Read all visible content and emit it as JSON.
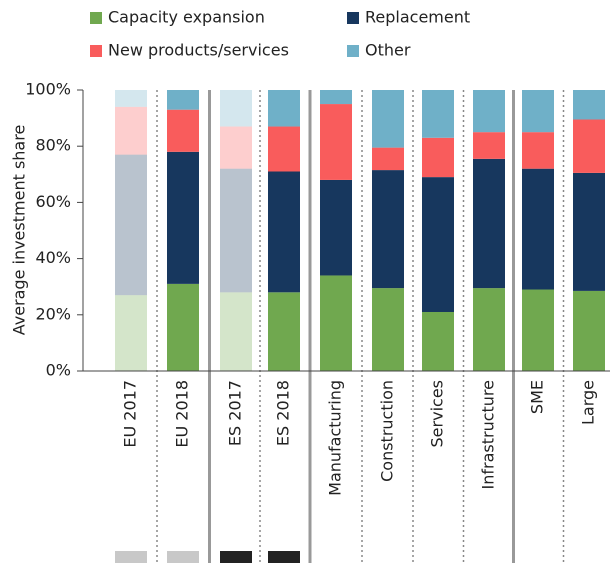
{
  "chart_data": {
    "type": "stacked_bar",
    "y_axis_label": "Average investment share",
    "categories": [
      "EU 2017",
      "EU 2018",
      "ES 2017",
      "ES 2018",
      "Manufacturing",
      "Construction",
      "Services",
      "Infrastructure",
      "SME",
      "Large"
    ],
    "faded": [
      true,
      false,
      true,
      false,
      false,
      false,
      false,
      false,
      false,
      false
    ],
    "series": [
      {
        "name": "Capacity expansion",
        "color": "#70a84f",
        "values": [
          27,
          31,
          28,
          28,
          34,
          29.5,
          21,
          29.5,
          29,
          28.5
        ]
      },
      {
        "name": "Replacement",
        "color": "#17375e",
        "values": [
          50,
          47,
          44,
          43,
          34,
          42,
          48,
          46,
          43,
          42
        ]
      },
      {
        "name": "New products/services",
        "color": "#f95c5c",
        "values": [
          17,
          15,
          15,
          16,
          27,
          8,
          14,
          9.5,
          13,
          19
        ]
      },
      {
        "name": "Other",
        "color": "#6fb0c8",
        "values": [
          6,
          7,
          13,
          13,
          5,
          20.5,
          17,
          15,
          15,
          10.5
        ]
      }
    ],
    "ylim": [
      0,
      100
    ],
    "yticks": [
      {
        "value": 0,
        "label": "0%"
      },
      {
        "value": 20,
        "label": "20%"
      },
      {
        "value": 40,
        "label": "40%"
      },
      {
        "value": 60,
        "label": "60%"
      },
      {
        "value": 80,
        "label": "80%"
      },
      {
        "value": 100,
        "label": "100%"
      }
    ]
  }
}
